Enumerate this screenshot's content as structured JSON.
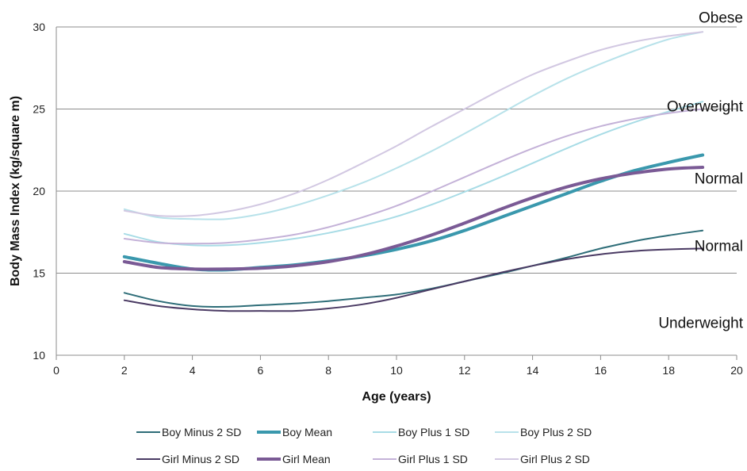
{
  "chart_data": {
    "type": "line",
    "title": "",
    "xlabel": "Age (years)",
    "ylabel": "Body Mass Index (kg/square m)",
    "xlim": [
      0,
      20
    ],
    "ylim": [
      10,
      30
    ],
    "xticks": [
      0,
      2,
      4,
      6,
      8,
      10,
      12,
      14,
      16,
      18,
      20
    ],
    "yticks": [
      10,
      15,
      20,
      25,
      30
    ],
    "grid": "horizontal",
    "legend_position": "bottom",
    "annotations": [
      {
        "text": "Obese",
        "x": 20,
        "y": 30.6
      },
      {
        "text": "Overweight",
        "x": 20,
        "y": 25.2
      },
      {
        "text": "Normal",
        "x": 20,
        "y": 20.8
      },
      {
        "text": "Normal",
        "x": 20,
        "y": 16.7
      },
      {
        "text": "Underweight",
        "x": 20,
        "y": 12.0
      }
    ],
    "x": [
      2,
      3,
      4,
      5,
      6,
      7,
      8,
      9,
      10,
      11,
      12,
      13,
      14,
      15,
      16,
      17,
      18,
      19
    ],
    "series": [
      {
        "name": "Boy Minus 2 SD",
        "color": "#2e6d78",
        "width": 2,
        "values": [
          13.8,
          13.3,
          13.0,
          12.95,
          13.05,
          13.15,
          13.3,
          13.5,
          13.7,
          14.05,
          14.5,
          14.95,
          15.45,
          15.95,
          16.5,
          16.95,
          17.3,
          17.6
        ]
      },
      {
        "name": "Boy Mean",
        "color": "#3a98ad",
        "width": 4,
        "values": [
          16.0,
          15.6,
          15.25,
          15.2,
          15.35,
          15.5,
          15.75,
          16.05,
          16.45,
          16.95,
          17.6,
          18.35,
          19.1,
          19.85,
          20.6,
          21.25,
          21.75,
          22.2
        ]
      },
      {
        "name": "Boy Plus 1 SD",
        "color": "#a8dce6",
        "width": 2,
        "values": [
          17.4,
          16.9,
          16.7,
          16.7,
          16.85,
          17.1,
          17.45,
          17.9,
          18.45,
          19.15,
          19.95,
          20.8,
          21.7,
          22.6,
          23.45,
          24.2,
          24.85,
          25.45
        ]
      },
      {
        "name": "Boy Plus 2 SD",
        "color": "#b8e2ea",
        "width": 2,
        "values": [
          18.9,
          18.4,
          18.3,
          18.3,
          18.6,
          19.1,
          19.75,
          20.5,
          21.4,
          22.4,
          23.5,
          24.65,
          25.8,
          26.85,
          27.75,
          28.55,
          29.25,
          29.7
        ]
      },
      {
        "name": "Girl Minus 2 SD",
        "color": "#4a3a63",
        "width": 2,
        "values": [
          13.35,
          13.0,
          12.8,
          12.7,
          12.7,
          12.7,
          12.85,
          13.1,
          13.5,
          14.0,
          14.5,
          15.0,
          15.45,
          15.85,
          16.15,
          16.35,
          16.45,
          16.5
        ]
      },
      {
        "name": "Girl Mean",
        "color": "#7a5a95",
        "width": 4,
        "values": [
          15.7,
          15.35,
          15.25,
          15.25,
          15.3,
          15.45,
          15.7,
          16.1,
          16.65,
          17.3,
          18.05,
          18.85,
          19.6,
          20.25,
          20.75,
          21.1,
          21.35,
          21.45
        ]
      },
      {
        "name": "Girl Plus 1 SD",
        "color": "#c4b2d8",
        "width": 2,
        "values": [
          17.1,
          16.85,
          16.8,
          16.85,
          17.05,
          17.35,
          17.8,
          18.4,
          19.1,
          19.95,
          20.85,
          21.75,
          22.6,
          23.35,
          23.95,
          24.4,
          24.75,
          25.0
        ]
      },
      {
        "name": "Girl Plus 2 SD",
        "color": "#d2c8e2",
        "width": 2,
        "values": [
          18.8,
          18.5,
          18.5,
          18.75,
          19.2,
          19.85,
          20.7,
          21.7,
          22.75,
          23.9,
          25.0,
          26.1,
          27.1,
          27.9,
          28.6,
          29.1,
          29.45,
          29.7
        ]
      }
    ]
  }
}
